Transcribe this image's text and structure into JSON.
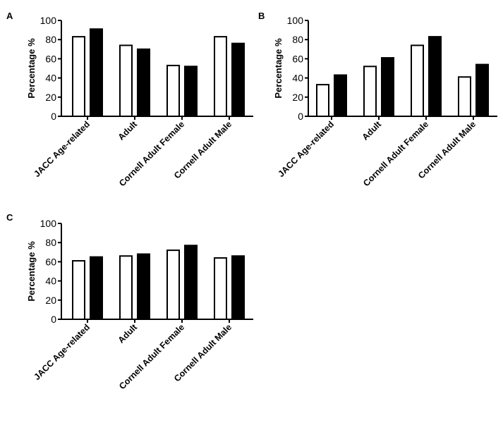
{
  "chart_data": [
    {
      "panel": "A",
      "type": "bar",
      "ylabel": "Percentage %",
      "ylim": [
        0,
        100
      ],
      "yticks": [
        "0",
        "20",
        "40",
        "60",
        "80",
        "100"
      ],
      "categories": [
        "JACC Age-related",
        "Adult",
        "Cornell Adult Female",
        "Cornell Adult Male"
      ],
      "series": [
        {
          "fill": "#ffffff",
          "values": [
            83,
            74,
            53,
            83
          ]
        },
        {
          "fill": "#000000",
          "values": [
            91,
            70,
            52,
            76
          ]
        }
      ],
      "grid": false
    },
    {
      "panel": "B",
      "type": "bar",
      "ylabel": "Percentage %",
      "ylim": [
        0,
        100
      ],
      "yticks": [
        "0",
        "20",
        "40",
        "60",
        "80",
        "100"
      ],
      "categories": [
        "JACC Age-related",
        "Adult",
        "Cornell Adult Female",
        "Cornell Adult Male"
      ],
      "series": [
        {
          "fill": "#ffffff",
          "values": [
            33,
            52,
            74,
            41
          ]
        },
        {
          "fill": "#000000",
          "values": [
            43,
            61,
            83,
            54
          ]
        }
      ],
      "grid": false
    },
    {
      "panel": "C",
      "type": "bar",
      "ylabel": "Percentage %",
      "ylim": [
        0,
        100
      ],
      "yticks": [
        "0",
        "20",
        "40",
        "60",
        "80",
        "100"
      ],
      "categories": [
        "JACC Age-related",
        "Adult",
        "Cornell Adult Female",
        "Cornell Adult Male"
      ],
      "series": [
        {
          "fill": "#ffffff",
          "values": [
            61,
            66,
            72,
            64
          ]
        },
        {
          "fill": "#000000",
          "values": [
            65,
            68,
            77,
            66
          ]
        }
      ],
      "grid": false
    }
  ]
}
